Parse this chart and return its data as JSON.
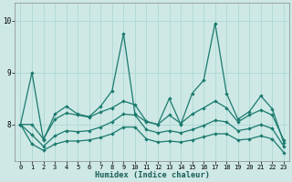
{
  "xlabel": "Humidex (Indice chaleur)",
  "bg_color": "#cde8e5",
  "grid_color": "#a8d5d1",
  "line_color": "#1a7a6e",
  "xlim": [
    -0.5,
    23.5
  ],
  "ylim": [
    7.3,
    10.35
  ],
  "yticks": [
    8,
    9,
    10
  ],
  "xticks": [
    0,
    1,
    2,
    3,
    4,
    5,
    6,
    7,
    8,
    9,
    10,
    11,
    12,
    13,
    14,
    15,
    16,
    17,
    18,
    19,
    20,
    21,
    22,
    23
  ],
  "series1": [
    8.0,
    9.0,
    7.7,
    8.2,
    8.35,
    8.2,
    8.15,
    8.35,
    8.65,
    9.75,
    8.2,
    8.05,
    8.0,
    8.5,
    8.0,
    8.6,
    8.85,
    9.95,
    8.6,
    8.1,
    8.25,
    8.55,
    8.3,
    7.65
  ],
  "series2": [
    8.0,
    8.0,
    7.72,
    8.1,
    8.22,
    8.18,
    8.14,
    8.24,
    8.32,
    8.45,
    8.38,
    8.06,
    8.0,
    8.18,
    8.02,
    8.2,
    8.32,
    8.45,
    8.32,
    8.05,
    8.18,
    8.28,
    8.18,
    7.7
  ],
  "series3": [
    8.0,
    7.8,
    7.58,
    7.78,
    7.88,
    7.86,
    7.88,
    7.95,
    8.05,
    8.2,
    8.18,
    7.9,
    7.84,
    7.88,
    7.84,
    7.9,
    7.98,
    8.08,
    8.05,
    7.88,
    7.92,
    8.0,
    7.92,
    7.58
  ],
  "series4": [
    8.0,
    7.62,
    7.5,
    7.62,
    7.68,
    7.68,
    7.7,
    7.75,
    7.82,
    7.95,
    7.95,
    7.72,
    7.66,
    7.68,
    7.66,
    7.7,
    7.76,
    7.82,
    7.82,
    7.7,
    7.72,
    7.78,
    7.72,
    7.46
  ],
  "linewidth": 0.9,
  "markersize": 2.2
}
